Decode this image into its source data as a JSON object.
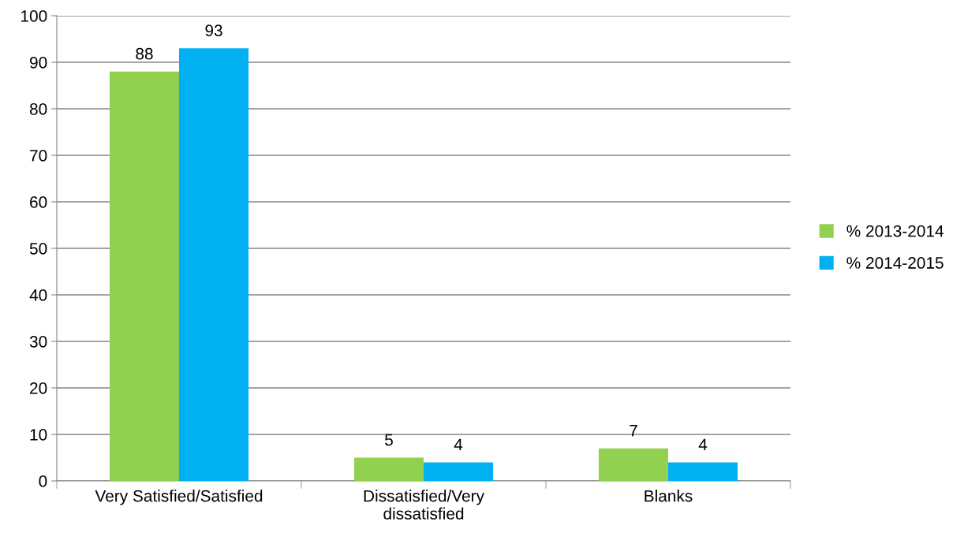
{
  "chart_data": {
    "type": "bar",
    "categories": [
      "Very Satisfied/Satisfied",
      "Dissatisfied/Very dissatisfied",
      "Blanks"
    ],
    "series": [
      {
        "name": "% 2013-2014",
        "color": "#92d050",
        "values": [
          88,
          5,
          7
        ]
      },
      {
        "name": "% 2014-2015",
        "color": "#00b0f0",
        "values": [
          93,
          4,
          4
        ]
      }
    ],
    "ylim": [
      0,
      100
    ],
    "yticks": [
      0,
      10,
      20,
      30,
      40,
      50,
      60,
      70,
      80,
      90,
      100
    ],
    "grid": "y",
    "legend": "right",
    "data_labels": true
  }
}
